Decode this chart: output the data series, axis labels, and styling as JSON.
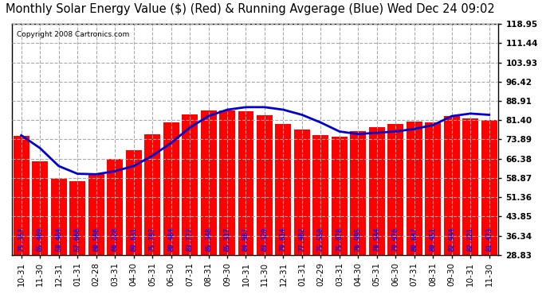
{
  "title": "Monthly Solar Energy Value ($) (Red) & Running Avgerage (Blue) Wed Dec 24 09:02",
  "copyright": "Copyright 2008 Cartronics.com",
  "bar_color": "#ff0000",
  "line_color": "#0000cc",
  "background_color": "#ffffff",
  "grid_color": "#aaaaaa",
  "text_color_on_bar": "#0000ff",
  "categories": [
    "10-31",
    "11-30",
    "12-31",
    "01-31",
    "02-28",
    "03-31",
    "04-30",
    "05-31",
    "06-30",
    "07-31",
    "08-31",
    "09-30",
    "10-31",
    "11-30",
    "12-31",
    "01-31",
    "02-29",
    "03-31",
    "04-30",
    "05-31",
    "06-30",
    "07-31",
    "08-31",
    "09-30",
    "10-31",
    "11-30"
  ],
  "values": [
    75.357,
    65.409,
    58.484,
    57.668,
    60.596,
    66.228,
    69.631,
    75.797,
    80.484,
    83.777,
    85.348,
    85.317,
    84.907,
    83.329,
    79.814,
    77.902,
    75.55,
    75.078,
    76.995,
    78.544,
    79.976,
    80.847,
    80.451,
    82.944,
    82.221,
    81.473
  ],
  "running_avg": [
    75.5,
    70.5,
    63.5,
    60.5,
    60.3,
    61.5,
    63.5,
    67.5,
    72.5,
    78.5,
    83.0,
    85.5,
    86.5,
    86.5,
    85.5,
    83.5,
    80.5,
    77.0,
    76.0,
    76.5,
    77.0,
    78.0,
    79.5,
    83.0,
    84.0,
    83.5
  ],
  "ylim": [
    28.83,
    118.95
  ],
  "yticks": [
    28.83,
    36.34,
    43.85,
    51.36,
    58.87,
    66.38,
    73.89,
    81.4,
    88.91,
    96.42,
    103.93,
    111.44,
    118.95
  ],
  "title_fontsize": 10.5,
  "bar_label_fontsize": 6.0,
  "figsize": [
    6.9,
    3.75
  ],
  "dpi": 100
}
